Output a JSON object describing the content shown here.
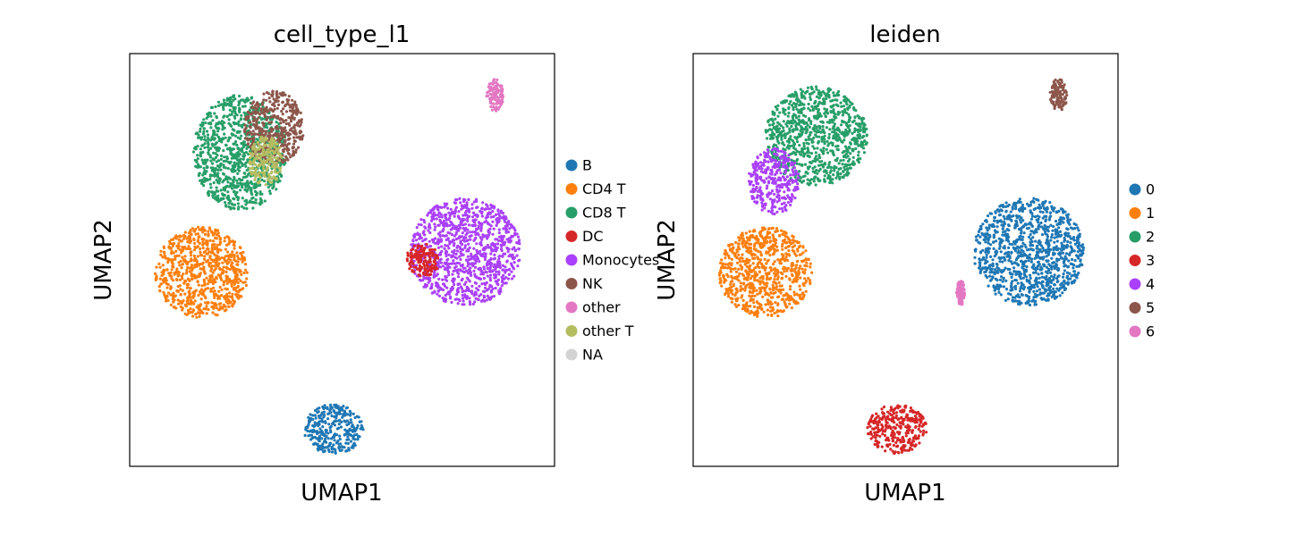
{
  "chart_data": [
    {
      "type": "scatter",
      "title": "cell_type_l1",
      "xlabel": "UMAP1",
      "ylabel": "UMAP2",
      "grid": false,
      "ticks": false,
      "legend_placement": "right",
      "legend": [
        {
          "label": "B",
          "color": "#1f77b4"
        },
        {
          "label": "CD4 T",
          "color": "#ff7f0e"
        },
        {
          "label": "CD8 T",
          "color": "#279e68"
        },
        {
          "label": "DC",
          "color": "#d62728"
        },
        {
          "label": "Monocytes",
          "color": "#aa40fc"
        },
        {
          "label": "NK",
          "color": "#8c564b"
        },
        {
          "label": "other",
          "color": "#e377c2"
        },
        {
          "label": "other T",
          "color": "#b5bd61"
        },
        {
          "label": "NA",
          "color": "#d3d3d3"
        }
      ],
      "clusters": [
        {
          "label": "CD8 T",
          "cx": 0.26,
          "cy": 0.76,
          "rx": 0.11,
          "ry": 0.14
        },
        {
          "label": "NK",
          "cx": 0.34,
          "cy": 0.82,
          "rx": 0.07,
          "ry": 0.09
        },
        {
          "label": "other T",
          "cx": 0.32,
          "cy": 0.74,
          "rx": 0.04,
          "ry": 0.06
        },
        {
          "label": "CD4 T",
          "cx": 0.17,
          "cy": 0.47,
          "rx": 0.11,
          "ry": 0.11
        },
        {
          "label": "Monocytes",
          "cx": 0.79,
          "cy": 0.52,
          "rx": 0.13,
          "ry": 0.13
        },
        {
          "label": "DC",
          "cx": 0.69,
          "cy": 0.5,
          "rx": 0.04,
          "ry": 0.04
        },
        {
          "label": "B",
          "cx": 0.48,
          "cy": 0.09,
          "rx": 0.07,
          "ry": 0.06
        },
        {
          "label": "other",
          "cx": 0.86,
          "cy": 0.9,
          "rx": 0.02,
          "ry": 0.04
        }
      ]
    },
    {
      "type": "scatter",
      "title": "leiden",
      "xlabel": "UMAP1",
      "ylabel": "UMAP2",
      "grid": false,
      "ticks": false,
      "legend_placement": "right",
      "legend": [
        {
          "label": "0",
          "color": "#1f77b4"
        },
        {
          "label": "1",
          "color": "#ff7f0e"
        },
        {
          "label": "2",
          "color": "#279e68"
        },
        {
          "label": "3",
          "color": "#d62728"
        },
        {
          "label": "4",
          "color": "#aa40fc"
        },
        {
          "label": "5",
          "color": "#8c564b"
        },
        {
          "label": "6",
          "color": "#e377c2"
        }
      ],
      "clusters": [
        {
          "label": "2",
          "cx": 0.29,
          "cy": 0.8,
          "rx": 0.12,
          "ry": 0.12
        },
        {
          "label": "4",
          "cx": 0.19,
          "cy": 0.69,
          "rx": 0.06,
          "ry": 0.08
        },
        {
          "label": "1",
          "cx": 0.17,
          "cy": 0.47,
          "rx": 0.11,
          "ry": 0.11
        },
        {
          "label": "0",
          "cx": 0.79,
          "cy": 0.52,
          "rx": 0.13,
          "ry": 0.13
        },
        {
          "label": "3",
          "cx": 0.48,
          "cy": 0.09,
          "rx": 0.07,
          "ry": 0.06
        },
        {
          "label": "5",
          "cx": 0.86,
          "cy": 0.9,
          "rx": 0.02,
          "ry": 0.04
        },
        {
          "label": "6",
          "cx": 0.63,
          "cy": 0.42,
          "rx": 0.01,
          "ry": 0.03
        }
      ]
    }
  ]
}
